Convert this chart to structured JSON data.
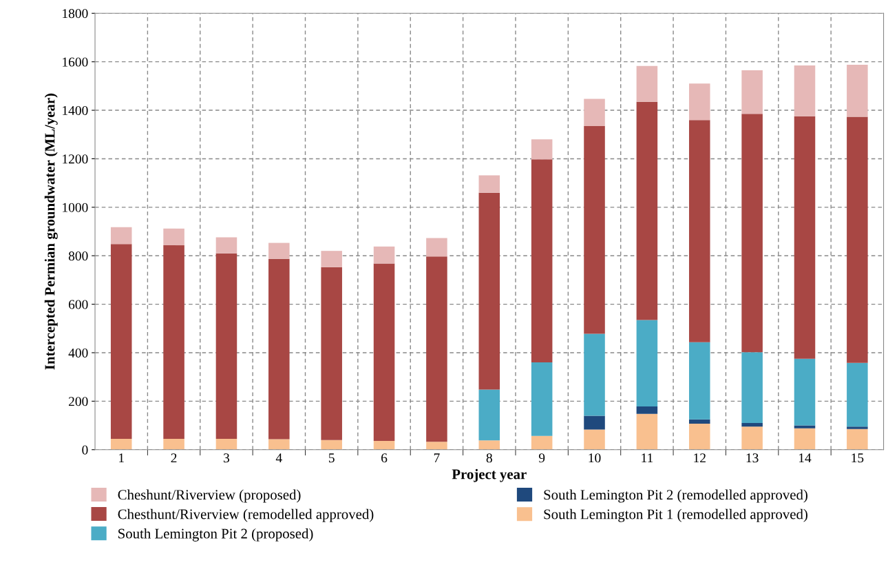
{
  "chart_data": {
    "type": "bar",
    "stacked": true,
    "xlabel": "Project year",
    "ylabel": "Intercepted Permian groundwater (ML/year)",
    "categories": [
      "1",
      "2",
      "3",
      "4",
      "5",
      "6",
      "7",
      "8",
      "9",
      "10",
      "11",
      "12",
      "13",
      "14",
      "15"
    ],
    "series": [
      {
        "name": "South Lemington Pit 1 (remodelled approved)",
        "color": "#f9c08f",
        "values": [
          45,
          45,
          45,
          43,
          40,
          36,
          33,
          38,
          57,
          83,
          148,
          107,
          95,
          88,
          85
        ]
      },
      {
        "name": "South Lemington Pit 2 (remodelled approved)",
        "color": "#1f497d",
        "values": [
          0,
          0,
          0,
          0,
          0,
          0,
          0,
          0,
          0,
          57,
          30,
          18,
          15,
          12,
          10
        ]
      },
      {
        "name": "South Lemington Pit 2 (proposed)",
        "color": "#4bacc6",
        "values": [
          0,
          0,
          0,
          0,
          0,
          0,
          0,
          210,
          303,
          338,
          357,
          318,
          292,
          275,
          263
        ]
      },
      {
        "name": "Chesthunt/Riverview (remodelled approved)",
        "color": "#a84744",
        "values": [
          803,
          798,
          765,
          744,
          713,
          732,
          764,
          812,
          838,
          857,
          900,
          917,
          983,
          1000,
          1015
        ]
      },
      {
        "name": "Cheshunt/Riverview (proposed)",
        "color": "#e6b8b7",
        "values": [
          70,
          69,
          66,
          66,
          67,
          70,
          76,
          72,
          82,
          112,
          148,
          150,
          180,
          210,
          215
        ]
      }
    ],
    "ylim": [
      0,
      1800
    ],
    "yticks": [
      0,
      200,
      400,
      600,
      800,
      1000,
      1200,
      1400,
      1600,
      1800
    ],
    "grid": true,
    "legend": "bottom"
  }
}
